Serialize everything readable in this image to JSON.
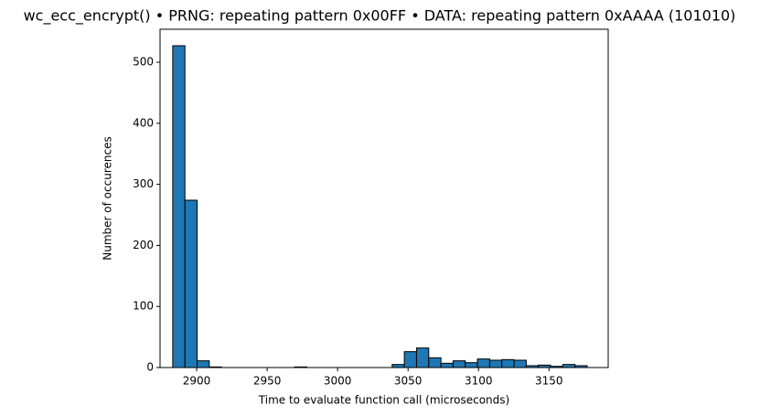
{
  "chart_data": {
    "type": "histogram",
    "title": "wc_ecc_encrypt() • PRNG: repeating pattern 0x00FF • DATA: repeating pattern 0xAAAA (101010)",
    "x_label": "Time to evaluate function call (microseconds)",
    "y_label": "Number of occurences",
    "color": "#1f77b4",
    "bins": [
      2883,
      2891.65,
      2900.3,
      2908.95,
      2917.6,
      2926.25,
      2934.9,
      2943.55,
      2952.2,
      2960.85,
      2969.5,
      2978.15,
      2986.8,
      2995.45,
      3004.1,
      3012.75,
      3021.4,
      3030.05,
      3038.7,
      3047.35,
      3056,
      3064.65,
      3073.3,
      3081.95,
      3090.6,
      3099.25,
      3107.9,
      3116.55,
      3125.2,
      3133.85,
      3142.5,
      3151.15,
      3159.8,
      3168.45,
      3177.1
    ],
    "values": [
      527,
      274,
      11,
      1,
      0,
      0,
      0,
      0,
      0,
      0,
      1,
      0,
      0,
      0,
      0,
      0,
      0,
      0,
      5,
      26,
      32,
      16,
      7,
      11,
      8,
      14,
      12,
      13,
      12,
      3,
      4,
      2,
      5,
      3
    ],
    "xlim": [
      2874,
      3192
    ],
    "xticks": [
      2900,
      2950,
      3000,
      3050,
      3100,
      3150
    ],
    "ylim": [
      0,
      554
    ],
    "yticks": [
      0,
      100,
      200,
      300,
      400,
      500
    ]
  }
}
